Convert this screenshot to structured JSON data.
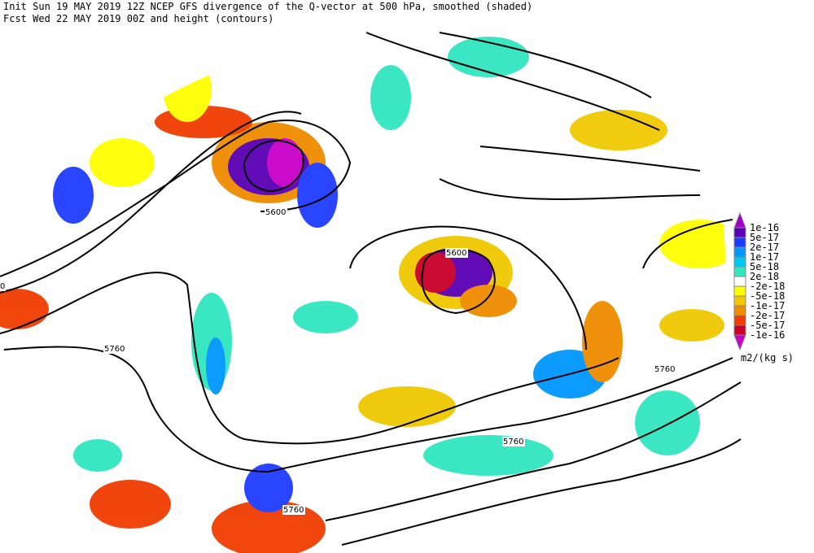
{
  "header": {
    "line1": "Init  Sun 19 MAY 2019 12Z  NCEP GFS divergence of the Q-vector at 500 hPa, smoothed (shaded)",
    "line2": "Fcst Wed 22 MAY 2019 00Z  and height (contours)"
  },
  "legend": {
    "labels": [
      "1e-16",
      "5e-17",
      "2e-17",
      "1e-17",
      "5e-18",
      "2e-18",
      "-2e-18",
      "-5e-18",
      "-1e-17",
      "-2e-17",
      "-5e-17",
      "-1e-16"
    ],
    "colors": [
      "#a000c8",
      "#5a00b4",
      "#1e3cff",
      "#0096ff",
      "#00c8f0",
      "#30e6c0",
      "#ffffff",
      "#ffff00",
      "#f0c800",
      "#f08c00",
      "#f03c00",
      "#c80028",
      "#c800c8"
    ],
    "units": "m2/(kg s)"
  },
  "contour_labels": [
    "0",
    "5600",
    "5600",
    "5760",
    "5760",
    "5760",
    "5760"
  ]
}
